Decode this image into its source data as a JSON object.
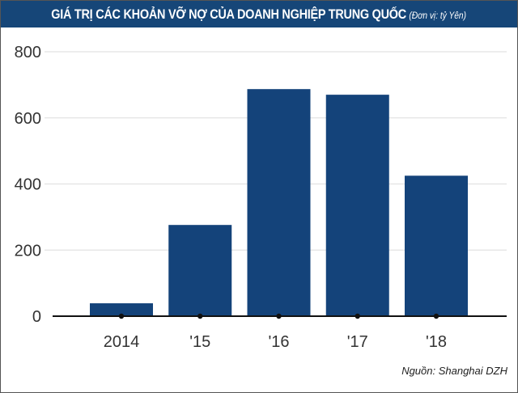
{
  "chart_data": {
    "type": "bar",
    "title": "GIÁ TRỊ CÁC KHOẢN VỠ NỢ CỦA DOANH NGHIỆP TRUNG QUỐC",
    "unit_note": "(Đơn vị: tỷ Yên)",
    "categories": [
      "2014",
      "'15",
      "'16",
      "'17",
      "'18"
    ],
    "values": [
      39,
      276,
      687,
      670,
      425
    ],
    "ylim": [
      0,
      800
    ],
    "yticks": [
      0,
      200,
      400,
      600,
      800
    ],
    "grid": true,
    "bar_color": "#14437a",
    "title_bar_color": "#164678",
    "source": "Nguồn: Shanghai DZH"
  }
}
